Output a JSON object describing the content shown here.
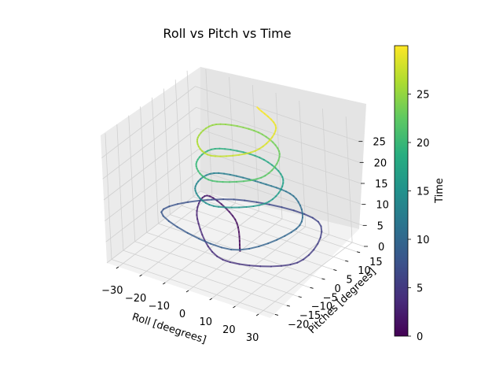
{
  "chart_data": {
    "type": "line",
    "projection": "3d",
    "title": "Roll vs Pitch vs Time",
    "xlabel": "Roll [deegrees]",
    "ylabel": "Pitches [degrees]",
    "zlabel": "",
    "xlim": [
      -35,
      35
    ],
    "ylim": [
      -22,
      18
    ],
    "zlim": [
      0,
      30
    ],
    "x_ticks": [
      -30,
      -20,
      -10,
      0,
      10,
      20,
      30
    ],
    "y_ticks": [
      -20,
      -15,
      -10,
      -5,
      0,
      5,
      10,
      15
    ],
    "z_ticks": [
      0,
      5,
      10,
      15,
      20,
      25
    ],
    "grid": true,
    "colormap": "viridis",
    "colorbar": {
      "label": "Time",
      "ticks": [
        0,
        5,
        10,
        15,
        20,
        25
      ],
      "range": [
        0,
        30
      ]
    },
    "series": [
      {
        "t": [
          0,
          1,
          2,
          3,
          4,
          5,
          6,
          7,
          8,
          9,
          10,
          11,
          12,
          13,
          14,
          15,
          16,
          17,
          18,
          19,
          20,
          21,
          22,
          23,
          24,
          25,
          26,
          27,
          28,
          29,
          30
        ],
        "roll": [
          0,
          -12,
          -28,
          -20,
          5,
          30,
          22,
          -10,
          -25,
          12,
          25,
          15,
          0,
          -16,
          -14,
          0,
          16,
          14,
          0,
          -15,
          -13,
          0,
          15,
          13,
          0,
          -14,
          -12,
          0,
          13,
          12,
          0
        ],
        "pitch": [
          0,
          10,
          14,
          2,
          -12,
          -5,
          12,
          8,
          -8,
          -15,
          0,
          10,
          10,
          6,
          -4,
          -10,
          -4,
          6,
          10,
          6,
          -4,
          -10,
          -4,
          6,
          10,
          6,
          -4,
          -10,
          -4,
          6,
          10
        ]
      }
    ]
  }
}
